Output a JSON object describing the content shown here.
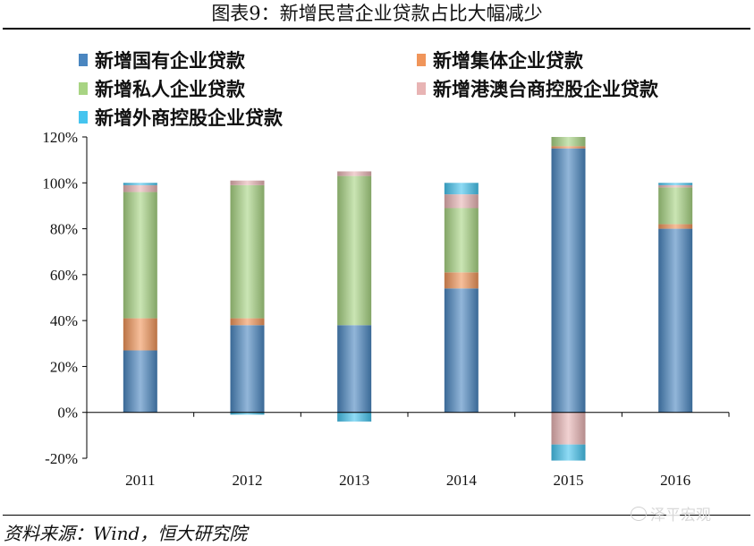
{
  "title": "图表9：新增民营企业贷款占比大幅减少",
  "source": "资料来源：Wind，恒大研究院",
  "watermark": "泽平宏观",
  "chart_data": {
    "type": "bar",
    "stacked": true,
    "categories": [
      "2011",
      "2012",
      "2013",
      "2014",
      "2015",
      "2016"
    ],
    "ylim": [
      -20,
      120
    ],
    "yticks": [
      "120%",
      "100%",
      "80%",
      "60%",
      "40%",
      "20%",
      "0%",
      "-20%"
    ],
    "ytick_values": [
      120,
      100,
      80,
      60,
      40,
      20,
      0,
      -20
    ],
    "series": [
      {
        "name": "新增国有企业贷款",
        "color": "#4a86c0",
        "values": [
          27,
          38,
          38,
          54,
          115,
          80
        ]
      },
      {
        "name": "新增集体企业贷款",
        "color": "#f0955a",
        "values": [
          14,
          3,
          0,
          7,
          1,
          2
        ]
      },
      {
        "name": "新增私人企业贷款",
        "color": "#a8d483",
        "values": [
          55,
          58,
          65,
          28,
          4,
          16
        ]
      },
      {
        "name": "新增港澳台商控股企业贷款",
        "color": "#e8b4b4",
        "values": [
          3,
          2,
          2,
          6,
          -14,
          1
        ]
      },
      {
        "name": "新增外商控股企业贷款",
        "color": "#45c4ef",
        "values": [
          1,
          -1,
          -4,
          5,
          -7,
          1
        ]
      }
    ],
    "legend_position": "top-left",
    "grid": false
  }
}
